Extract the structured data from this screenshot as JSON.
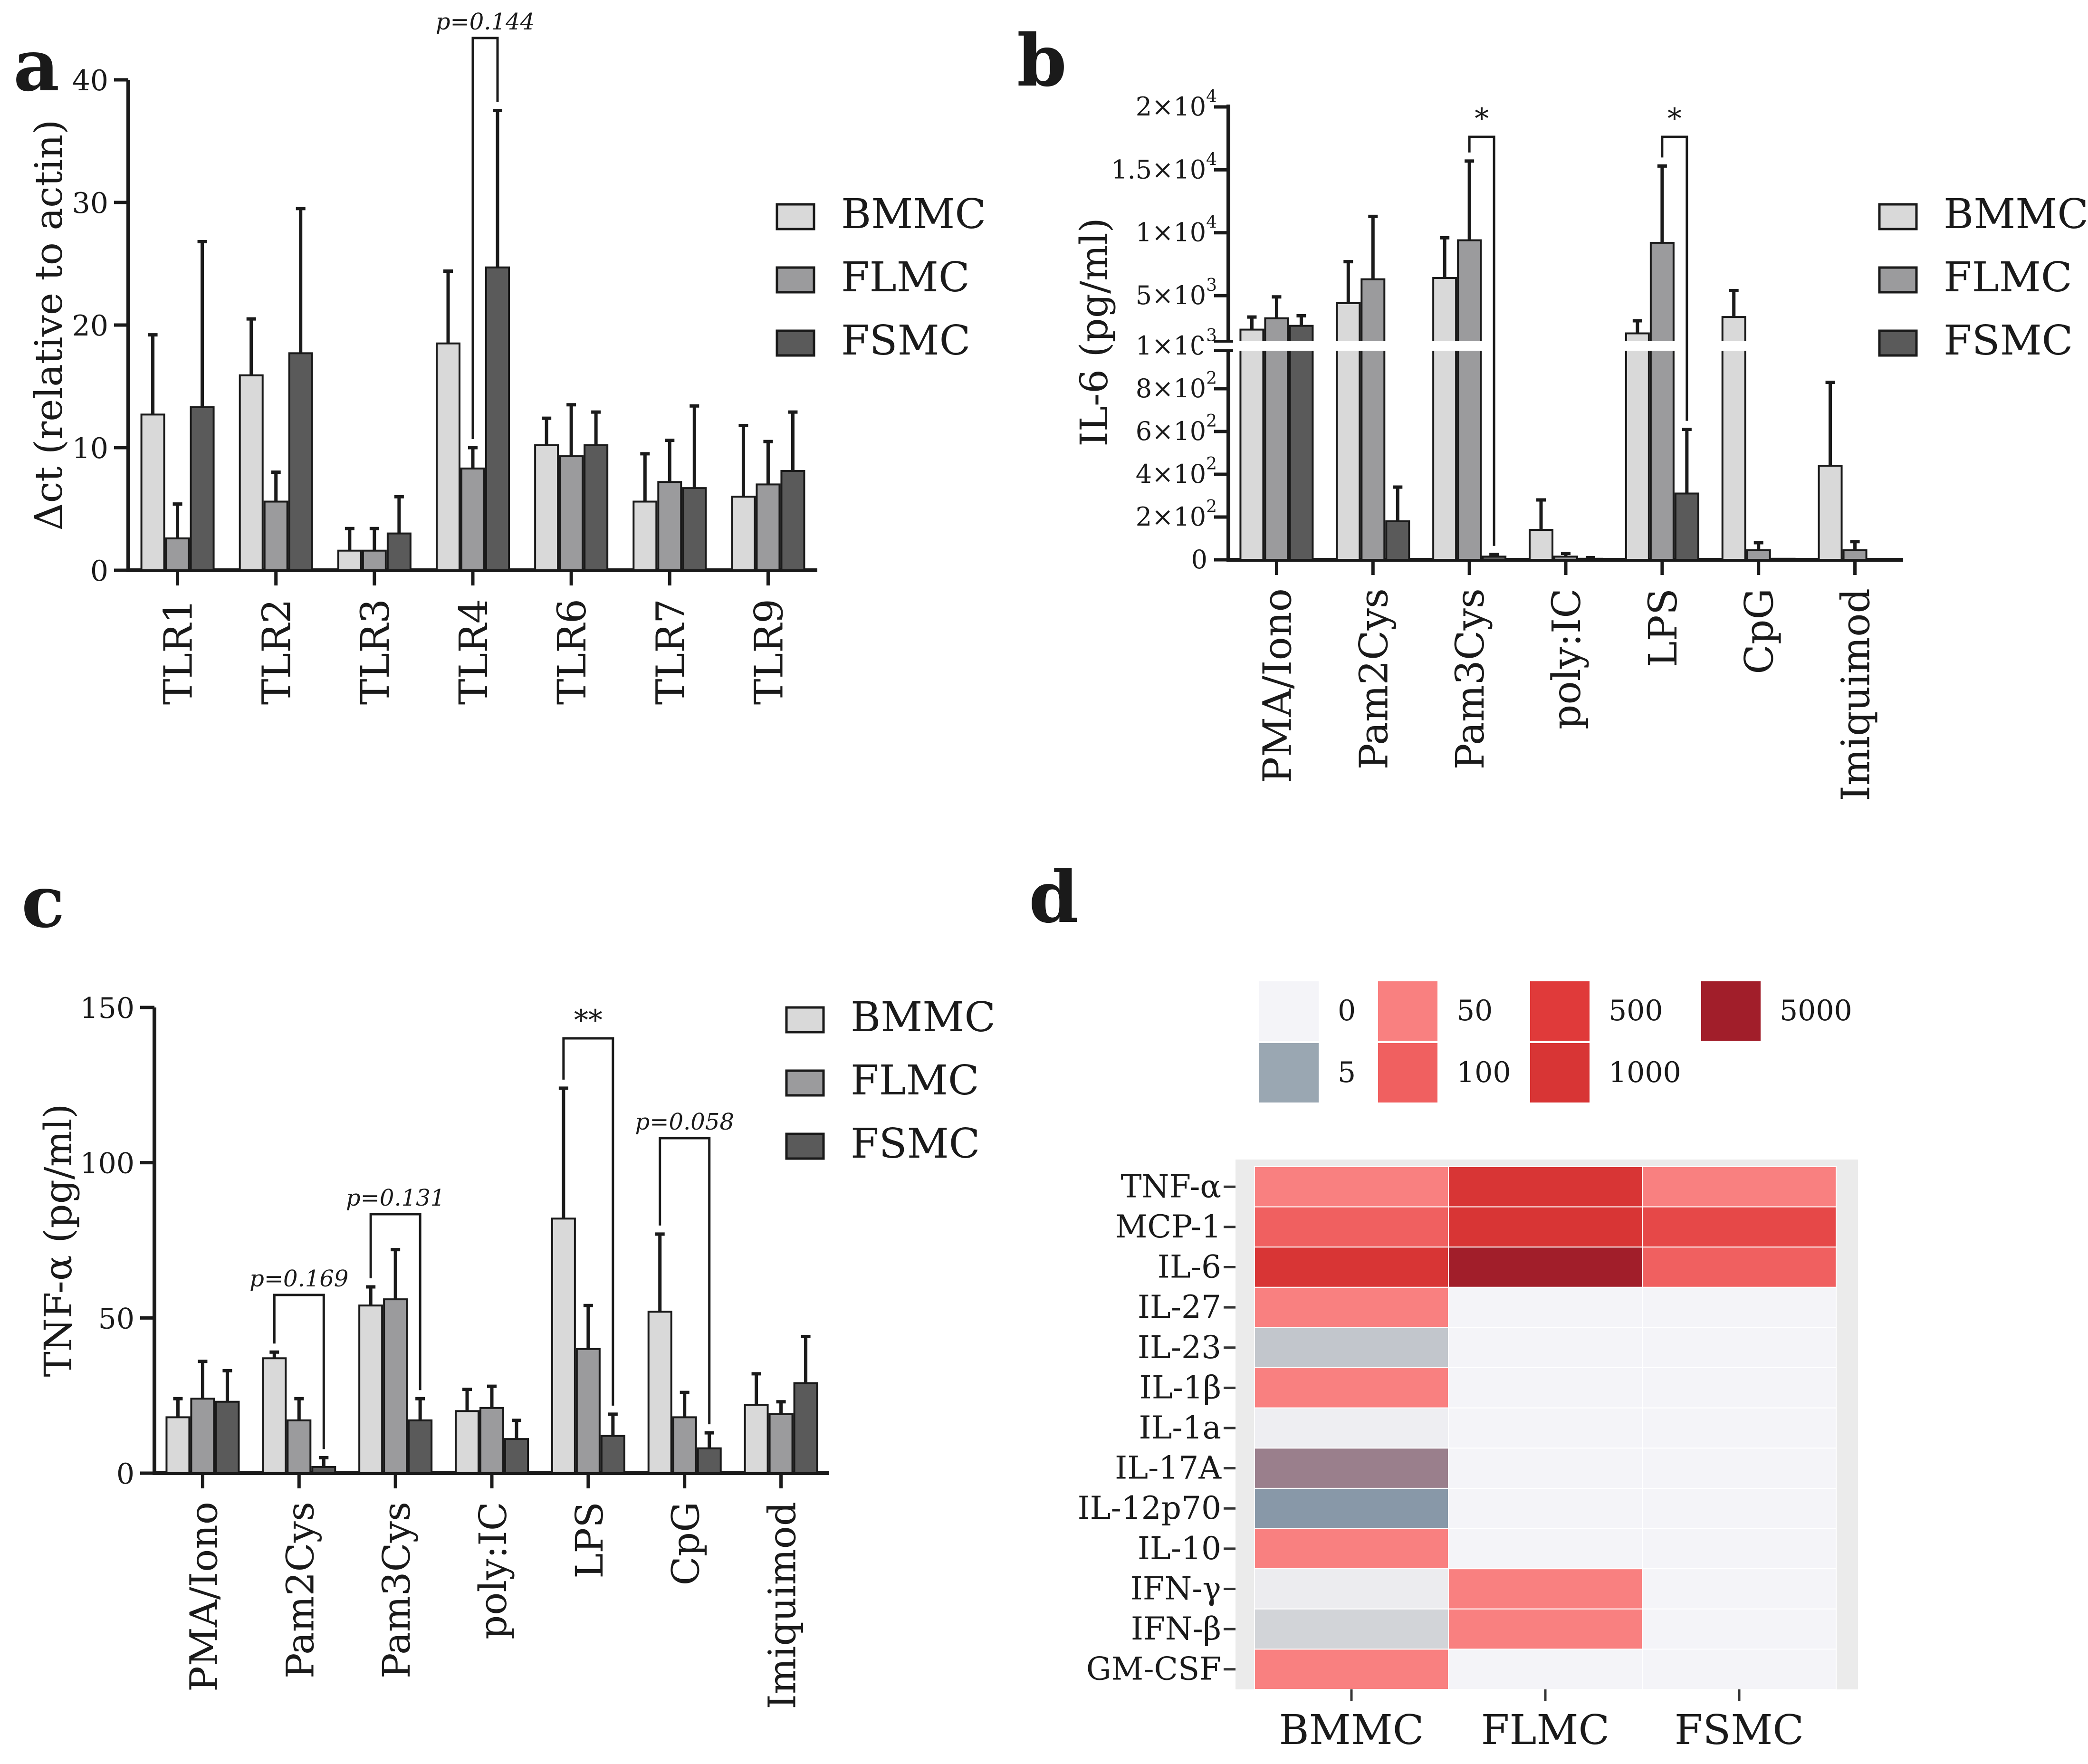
{
  "colors": {
    "BMMC": "#d9d9d9",
    "FLMC": "#9b9b9d",
    "FSMC": "#5a5a5a",
    "axis": "#1a1a1a"
  },
  "chart_data": [
    {
      "panel": "a",
      "type": "bar",
      "ylabel": "Δct (relative to actin)",
      "ylim": [
        0,
        40
      ],
      "yticks": [
        0,
        10,
        20,
        30,
        40
      ],
      "categories": [
        "TLR1",
        "TLR2",
        "TLR3",
        "TLR4",
        "TLR6",
        "TLR7",
        "TLR9"
      ],
      "series": [
        {
          "name": "BMMC",
          "values": [
            12.7,
            15.9,
            1.6,
            18.5,
            10.2,
            5.6,
            6.0
          ],
          "errors": [
            6.5,
            4.6,
            1.8,
            5.9,
            2.2,
            3.9,
            5.8
          ]
        },
        {
          "name": "FLMC",
          "values": [
            2.6,
            5.6,
            1.6,
            8.3,
            9.3,
            7.2,
            7.0
          ],
          "errors": [
            2.8,
            2.4,
            1.8,
            1.7,
            4.2,
            3.4,
            3.5
          ]
        },
        {
          "name": "FSMC",
          "values": [
            13.3,
            17.7,
            3.0,
            24.7,
            10.2,
            6.7,
            8.1
          ],
          "errors": [
            13.5,
            11.8,
            3.0,
            12.8,
            2.7,
            6.7,
            4.8
          ]
        }
      ],
      "legend": [
        "BMMC",
        "FLMC",
        "FSMC"
      ],
      "annotations": [
        {
          "text": "p=0.144",
          "from": [
            "TLR4",
            "FLMC"
          ],
          "to": [
            "TLR4",
            "FSMC"
          ]
        }
      ]
    },
    {
      "panel": "b",
      "type": "bar",
      "ylabel": "IL-6 (pg/ml)",
      "axis_break": 1000,
      "ytick_labels": [
        "0",
        "2×10",
        "4×10",
        "6×10",
        "8×10",
        "1×10",
        "5×10",
        "1×10",
        "1.5×10",
        "2×10"
      ],
      "ytick_exponents": [
        "",
        "2",
        "2",
        "2",
        "2",
        "3",
        "3",
        "4",
        "4",
        "4"
      ],
      "categories": [
        "PMA/Iono",
        "Pam2Cys",
        "Pam3Cys",
        "poly:IC",
        "LPS",
        "CpG",
        "Imiquimod"
      ],
      "series": [
        {
          "name": "BMMC",
          "values": [
            2300,
            4400,
            6400,
            140,
            2000,
            3300,
            440
          ],
          "errors": [
            1000,
            3300,
            3200,
            140,
            1000,
            2100,
            390
          ]
        },
        {
          "name": "FLMC",
          "values": [
            3200,
            6300,
            9400,
            15,
            9200,
            45,
            45
          ],
          "errors": [
            1700,
            5000,
            6300,
            15,
            6100,
            35,
            40
          ]
        },
        {
          "name": "FSMC",
          "values": [
            2600,
            180,
            15,
            5,
            310,
            5,
            0
          ],
          "errors": [
            800,
            160,
            10,
            5,
            300,
            0,
            0
          ]
        }
      ],
      "legend": [
        "BMMC",
        "FLMC",
        "FSMC"
      ],
      "annotations": [
        {
          "text": "*",
          "from": [
            "Pam3Cys",
            "FLMC"
          ],
          "to": [
            "Pam3Cys",
            "FSMC"
          ]
        },
        {
          "text": "*",
          "from": [
            "LPS",
            "FLMC"
          ],
          "to": [
            "LPS",
            "FSMC"
          ]
        }
      ]
    },
    {
      "panel": "c",
      "type": "bar",
      "ylabel": "TNF-α (pg/ml)",
      "ylim": [
        0,
        150
      ],
      "yticks": [
        0,
        50,
        100,
        150
      ],
      "categories": [
        "PMA/Iono",
        "Pam2Cys",
        "Pam3Cys",
        "poly:IC",
        "LPS",
        "CpG",
        "Imiquimod"
      ],
      "series": [
        {
          "name": "BMMC",
          "values": [
            18,
            37,
            54,
            20,
            82,
            52,
            22
          ],
          "errors": [
            6,
            2,
            6,
            7,
            42,
            25,
            10
          ]
        },
        {
          "name": "FLMC",
          "values": [
            24,
            17,
            56,
            21,
            40,
            18,
            19
          ],
          "errors": [
            12,
            7,
            16,
            7,
            14,
            8,
            4
          ]
        },
        {
          "name": "FSMC",
          "values": [
            23,
            2,
            17,
            11,
            12,
            8,
            29
          ],
          "errors": [
            10,
            3,
            7,
            6,
            7,
            5,
            15
          ]
        }
      ],
      "legend": [
        "BMMC",
        "FLMC",
        "FSMC"
      ],
      "annotations": [
        {
          "text": "p=0.169",
          "from": [
            "Pam2Cys",
            "BMMC"
          ],
          "to": [
            "Pam2Cys",
            "FSMC"
          ]
        },
        {
          "text": "p=0.131",
          "from": [
            "Pam3Cys",
            "BMMC"
          ],
          "to": [
            "Pam3Cys",
            "FSMC"
          ]
        },
        {
          "text": "**",
          "from": [
            "LPS",
            "BMMC"
          ],
          "to": [
            "LPS",
            "FSMC"
          ]
        },
        {
          "text": "p=0.058",
          "from": [
            "CpG",
            "BMMC"
          ],
          "to": [
            "CpG",
            "FSMC"
          ]
        }
      ]
    },
    {
      "panel": "d",
      "type": "heatmap",
      "columns": [
        "BMMC",
        "FLMC",
        "FSMC"
      ],
      "rows": [
        "TNF-α",
        "MCP-1",
        "IL-6",
        "IL-27",
        "IL-23",
        "IL-1β",
        "IL-1a",
        "IL-17A",
        "IL-12p70",
        "IL-10",
        "IFN-γ",
        "IFN-β",
        "GM-CSF"
      ],
      "legend": [
        {
          "label": "0",
          "color": "#f4f4f8"
        },
        {
          "label": "5",
          "color": "#9aa7b2"
        },
        {
          "label": "50",
          "color": "#f98080"
        },
        {
          "label": "100",
          "color": "#f06060"
        },
        {
          "label": "500",
          "color": "#e03a3a"
        },
        {
          "label": "1000",
          "color": "#d83535"
        },
        {
          "label": "5000",
          "color": "#a11e2a"
        }
      ],
      "cells": [
        [
          "#f98080",
          "#d83535",
          "#f98080"
        ],
        [
          "#f06060",
          "#d83535",
          "#e64848"
        ],
        [
          "#d83535",
          "#a11e2a",
          "#f06060"
        ],
        [
          "#f98080",
          "#f4f4f8",
          "#f4f4f8"
        ],
        [
          "#c2c6cc",
          "#f4f4f8",
          "#f4f4f8"
        ],
        [
          "#f98080",
          "#f4f4f8",
          "#f4f4f8"
        ],
        [
          "#eeeef2",
          "#f4f4f8",
          "#f4f4f8"
        ],
        [
          "#9a7f8c",
          "#f4f4f8",
          "#f4f4f8"
        ],
        [
          "#8898a8",
          "#f4f4f8",
          "#f4f4f8"
        ],
        [
          "#f98080",
          "#f4f4f8",
          "#f4f4f8"
        ],
        [
          "#ececef",
          "#f98080",
          "#f4f4f8"
        ],
        [
          "#d2d4d8",
          "#f98080",
          "#f4f4f8"
        ],
        [
          "#f98080",
          "#f4f4f8",
          "#f4f4f8"
        ]
      ]
    }
  ],
  "panel_letters": [
    "a",
    "b",
    "c",
    "d"
  ]
}
